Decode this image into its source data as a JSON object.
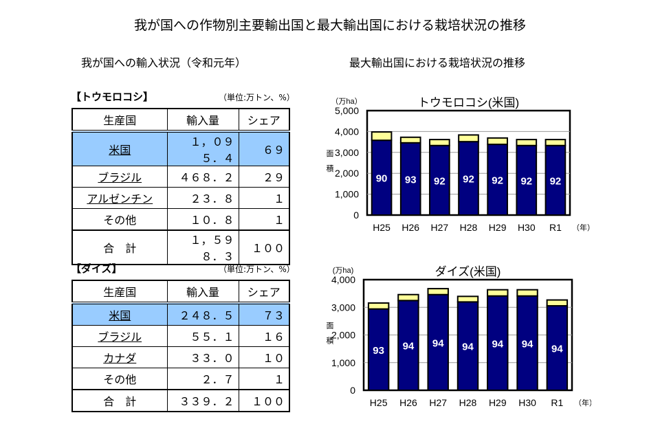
{
  "title": "我が国への作物別主要輸出国と最大輸出国における栽培状況の推移",
  "left_subtitle": "我が国への輸入状況（令和元年）",
  "right_subtitle": "最大輸出国における栽培状況の推移",
  "tables": [
    {
      "label": "【トウモロコシ】",
      "unit": "（単位:万トン、%）",
      "headers": [
        "生産国",
        "輸入量",
        "シェア"
      ],
      "rows": [
        [
          "米国",
          "１，０９５．４",
          "６９"
        ],
        [
          "ブラジル",
          "４６８．２",
          "２９"
        ],
        [
          "アルゼンチン",
          "２３．８",
          "１"
        ],
        [
          "その他",
          "１０．８",
          "１"
        ]
      ],
      "total": [
        "合　計",
        "１，５９８．３",
        "１００"
      ]
    },
    {
      "label": "【ダイズ】",
      "unit": "（単位:万トン、%）",
      "headers": [
        "生産国",
        "輸入量",
        "シェア"
      ],
      "rows": [
        [
          "米国",
          "２４８．５",
          "７３"
        ],
        [
          "ブラジル",
          "５５．１",
          "１６"
        ],
        [
          "カナダ",
          "３３．０",
          "１０"
        ],
        [
          "その他",
          "２．７",
          "１"
        ]
      ],
      "total": [
        "合　計",
        "３３９．２",
        "１００"
      ]
    }
  ],
  "chart_data": [
    {
      "type": "bar",
      "stacked": true,
      "title": "トウモロコシ(米国)",
      "yunit": "（万ha）",
      "ylabel": "面積",
      "xunit": "（年）",
      "categories": [
        "H25",
        "H26",
        "H27",
        "H28",
        "H29",
        "H30",
        "R1"
      ],
      "ylim": [
        0,
        5000
      ],
      "yticks": [
        "0",
        "1,000",
        "2,000",
        "3,000",
        "4,000",
        "5,000"
      ],
      "grid": true,
      "series": [
        {
          "values": [
            3580,
            3460,
            3330,
            3515,
            3385,
            3330,
            3330
          ],
          "color": "#000080"
        },
        {
          "values": [
            400,
            265,
            285,
            320,
            305,
            285,
            285
          ],
          "color": "#ffff99"
        }
      ],
      "data_labels": [
        "90",
        "93",
        "92",
        "92",
        "92",
        "92",
        "92"
      ]
    },
    {
      "type": "bar",
      "stacked": true,
      "title": "ダイズ(米国)",
      "yunit": "(万ha)",
      "ylabel": "面積",
      "xunit": "（年）",
      "categories": [
        "H25",
        "H26",
        "H27",
        "H28",
        "H29",
        "H30",
        "R1"
      ],
      "ylim": [
        0,
        4000
      ],
      "yticks": [
        "0",
        "1,000",
        "2,000",
        "3,000",
        "4,000"
      ],
      "grid": true,
      "series": [
        {
          "values": [
            2940,
            3245,
            3460,
            3195,
            3410,
            3410,
            3055
          ],
          "color": "#000080"
        },
        {
          "values": [
            215,
            215,
            215,
            200,
            225,
            225,
            210
          ],
          "color": "#ffff99"
        }
      ],
      "data_labels": [
        "93",
        "94",
        "94",
        "94",
        "94",
        "94",
        "94"
      ]
    }
  ]
}
